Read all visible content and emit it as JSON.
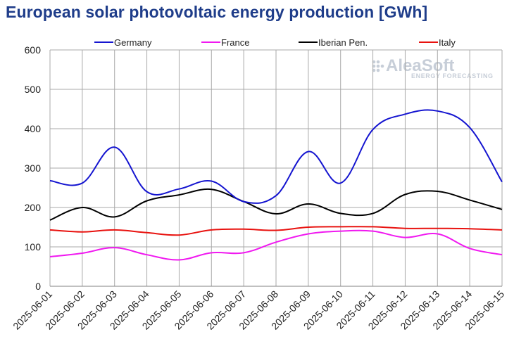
{
  "title": "European solar photovoltaic energy production [GWh]",
  "logo": {
    "name": "AleaSoft",
    "tagline": "ENERGY FORECASTING",
    "color": "#c7ced8"
  },
  "chart_data": {
    "type": "line",
    "title": "European solar photovoltaic energy production [GWh]",
    "xlabel": "",
    "ylabel": "",
    "ylim": [
      0,
      600
    ],
    "yticks": [
      0,
      100,
      200,
      300,
      400,
      500,
      600
    ],
    "grid": true,
    "legend_position": "top",
    "categories": [
      "2025-06-01",
      "2025-06-02",
      "2025-06-03",
      "2025-06-04",
      "2025-06-05",
      "2025-06-06",
      "2025-06-07",
      "2025-06-08",
      "2025-06-09",
      "2025-06-10",
      "2025-06-11",
      "2025-06-12",
      "2025-06-13",
      "2025-06-14",
      "2025-06-15"
    ],
    "series": [
      {
        "name": "Germany",
        "color": "#1515d0",
        "values": [
          268,
          262,
          353,
          240,
          247,
          267,
          215,
          230,
          342,
          262,
          398,
          437,
          445,
          403,
          265
        ]
      },
      {
        "name": "France",
        "color": "#f019f0",
        "values": [
          75,
          84,
          98,
          80,
          67,
          85,
          85,
          112,
          133,
          140,
          140,
          124,
          133,
          96,
          80
        ]
      },
      {
        "name": "Iberian Pen.",
        "color": "#000000",
        "values": [
          168,
          200,
          176,
          217,
          232,
          246,
          215,
          184,
          209,
          185,
          185,
          233,
          241,
          219,
          195
        ]
      },
      {
        "name": "Italy",
        "color": "#e8120f",
        "values": [
          143,
          138,
          143,
          136,
          130,
          143,
          145,
          142,
          150,
          151,
          151,
          147,
          147,
          146,
          143
        ]
      }
    ]
  }
}
